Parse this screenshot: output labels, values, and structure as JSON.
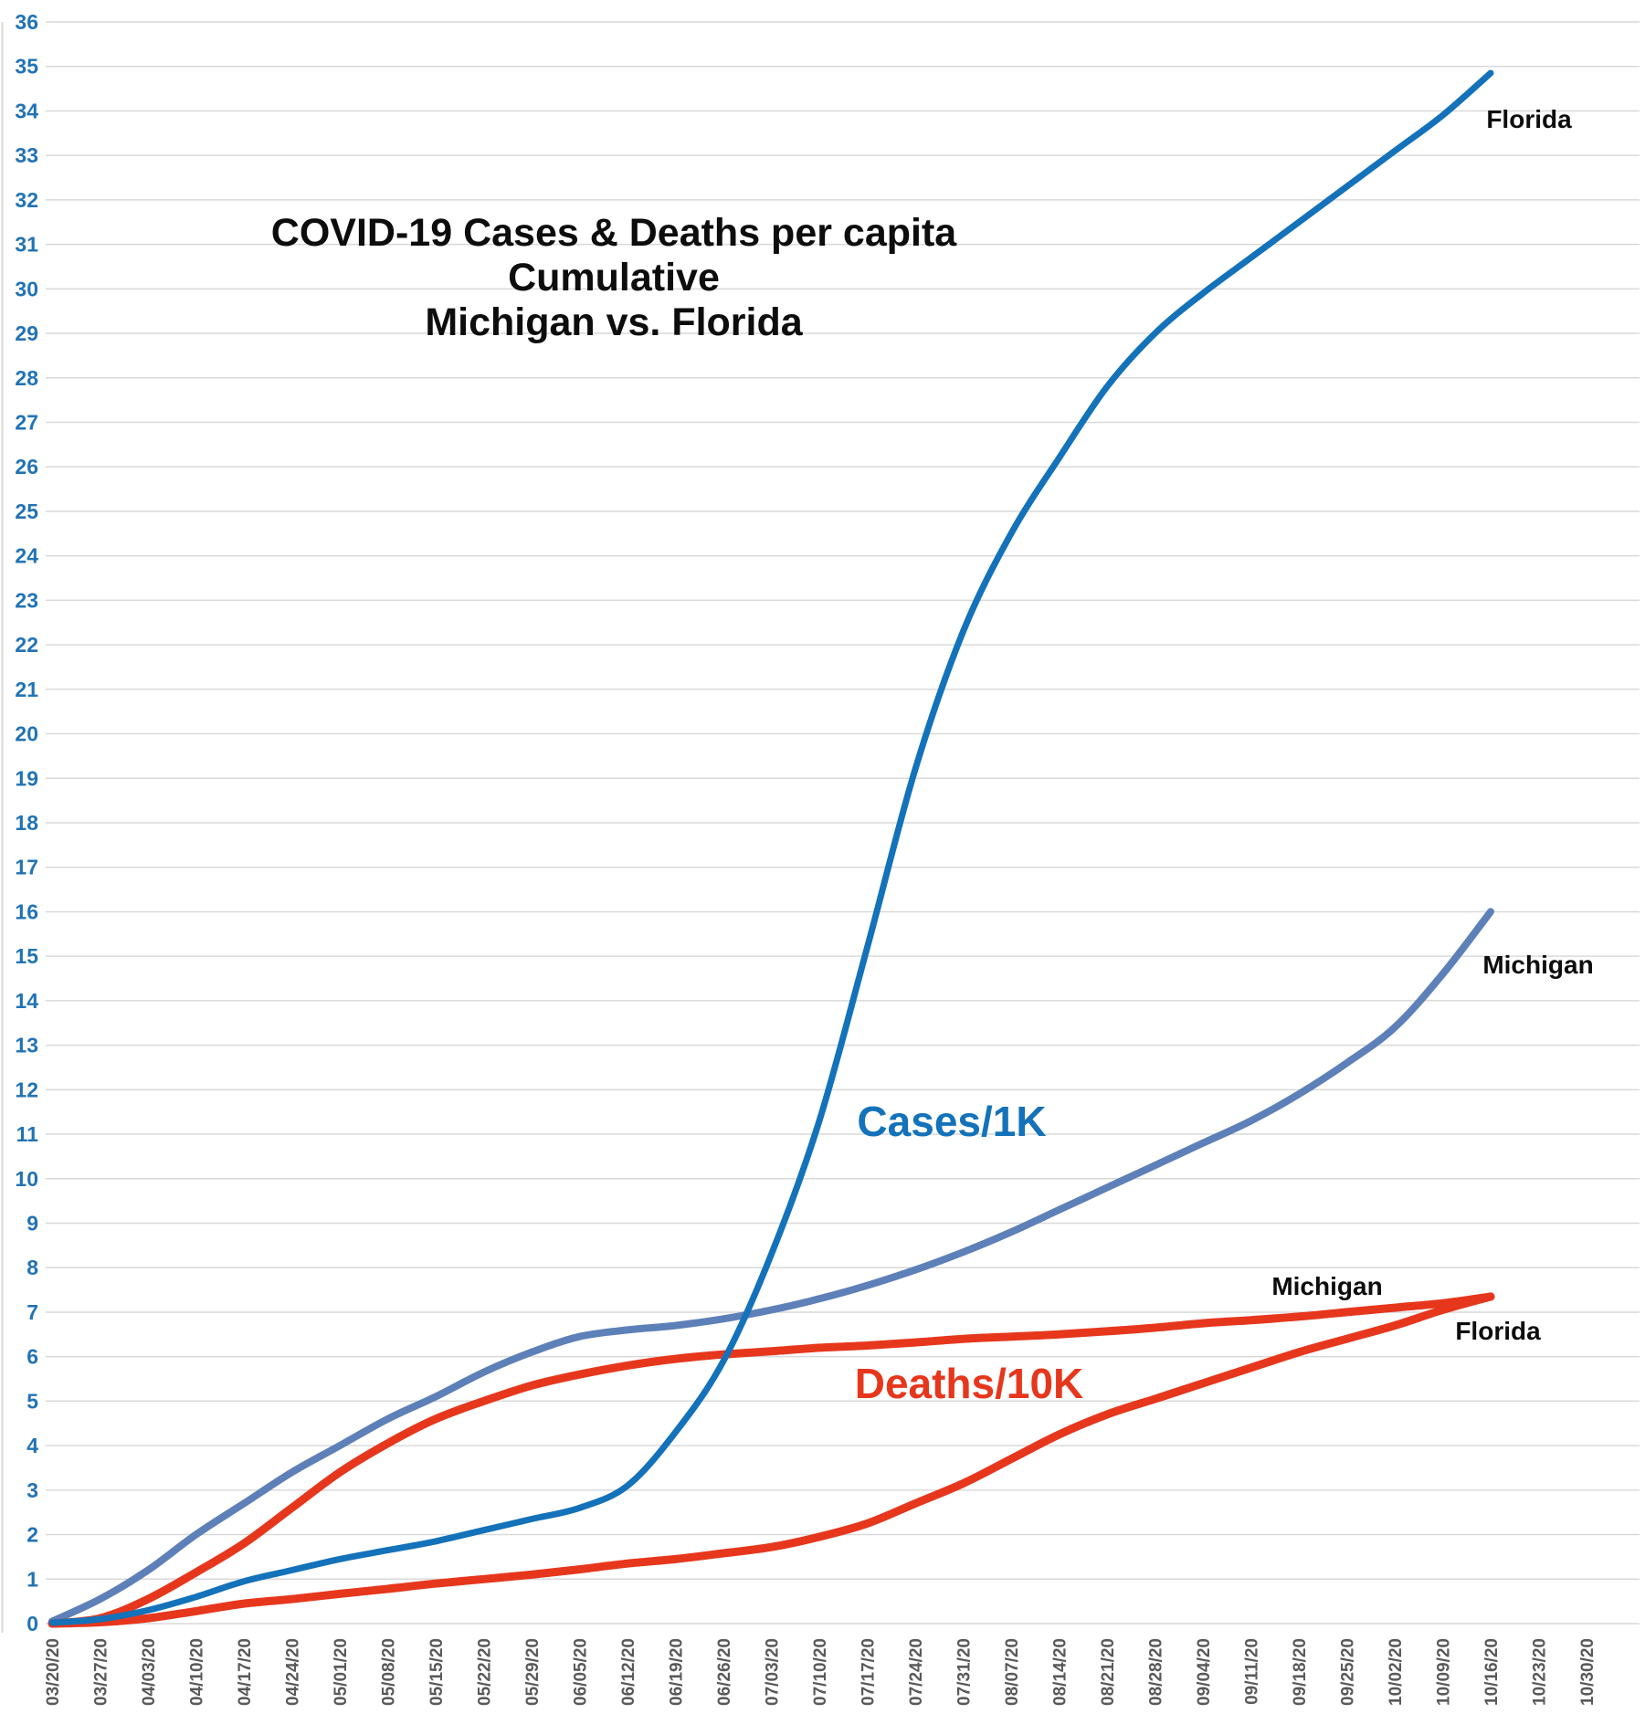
{
  "title": {
    "line1": "COVID-19 Cases & Deaths per capita",
    "line2": "Cumulative",
    "line3": "Michigan vs. Florida"
  },
  "annotations": {
    "cases_label": "Cases/1K",
    "deaths_label": "Deaths/10K",
    "florida_cases_label": "Florida",
    "michigan_cases_label": "Michigan",
    "michigan_deaths_label": "Michigan",
    "florida_deaths_label": "Florida"
  },
  "colors": {
    "florida_cases": "#1372B9",
    "michigan_cases": "#5E80B8",
    "michigan_deaths": "#E6371D",
    "florida_deaths": "#E6371D",
    "y_axis_labels": "#2173B5",
    "x_axis_labels": "#595959",
    "gridlines": "#D9D9D9",
    "title_text": "#0D0D0D"
  },
  "chart_data": {
    "type": "line",
    "title": "COVID-19 Cases & Deaths per capita Cumulative Michigan vs. Florida",
    "xlabel": "",
    "ylabel": "",
    "ylim": [
      0,
      36
    ],
    "y_tick_step": 1,
    "grid": "horizontal-only",
    "legend": "inline-labels",
    "categories": [
      "03/20/20",
      "03/27/20",
      "04/03/20",
      "04/10/20",
      "04/17/20",
      "04/24/20",
      "05/01/20",
      "05/08/20",
      "05/15/20",
      "05/22/20",
      "05/29/20",
      "06/05/20",
      "06/12/20",
      "06/19/20",
      "06/26/20",
      "07/03/20",
      "07/10/20",
      "07/17/20",
      "07/24/20",
      "07/31/20",
      "08/07/20",
      "08/14/20",
      "08/21/20",
      "08/28/20",
      "09/04/20",
      "09/11/20",
      "09/18/20",
      "09/25/20",
      "10/02/20",
      "10/09/20",
      "10/16/20",
      "10/23/20",
      "10/30/20"
    ],
    "note": "data series end at 10/16/20; axis extends to 10/30/20",
    "series": [
      {
        "name": "Michigan Cases/1K",
        "color_key": "michigan_cases",
        "stroke_width": 8,
        "values": [
          0.05,
          0.55,
          1.2,
          2.0,
          2.7,
          3.4,
          4.0,
          4.6,
          5.1,
          5.65,
          6.1,
          6.45,
          6.6,
          6.7,
          6.85,
          7.05,
          7.3,
          7.6,
          7.95,
          8.35,
          8.8,
          9.3,
          9.8,
          10.3,
          10.8,
          11.3,
          11.9,
          12.6,
          13.4,
          14.6,
          16.0
        ]
      },
      {
        "name": "Michigan Deaths/10K",
        "color_key": "michigan_deaths",
        "stroke_width": 9,
        "values": [
          0.0,
          0.12,
          0.55,
          1.15,
          1.8,
          2.6,
          3.4,
          4.05,
          4.6,
          5.0,
          5.35,
          5.6,
          5.8,
          5.95,
          6.05,
          6.12,
          6.2,
          6.25,
          6.32,
          6.4,
          6.45,
          6.5,
          6.57,
          6.65,
          6.75,
          6.82,
          6.9,
          7.0,
          7.1,
          7.2,
          7.35
        ]
      },
      {
        "name": "Florida Deaths/10K",
        "color_key": "florida_deaths",
        "stroke_width": 9,
        "values": [
          0.0,
          0.03,
          0.12,
          0.28,
          0.45,
          0.55,
          0.67,
          0.78,
          0.9,
          1.0,
          1.1,
          1.22,
          1.35,
          1.45,
          1.58,
          1.72,
          1.95,
          2.25,
          2.7,
          3.15,
          3.7,
          4.25,
          4.7,
          5.05,
          5.4,
          5.75,
          6.1,
          6.4,
          6.7,
          7.05,
          7.35
        ]
      },
      {
        "name": "Florida Cases/1K",
        "color_key": "florida_cases",
        "stroke_width": 7,
        "values": [
          0.02,
          0.1,
          0.3,
          0.6,
          0.95,
          1.2,
          1.45,
          1.65,
          1.85,
          2.1,
          2.35,
          2.6,
          3.1,
          4.3,
          5.9,
          8.3,
          11.3,
          15.2,
          19.2,
          22.3,
          24.5,
          26.2,
          27.8,
          29.0,
          29.9,
          30.7,
          31.5,
          32.3,
          33.1,
          33.9,
          34.85
        ]
      }
    ]
  }
}
